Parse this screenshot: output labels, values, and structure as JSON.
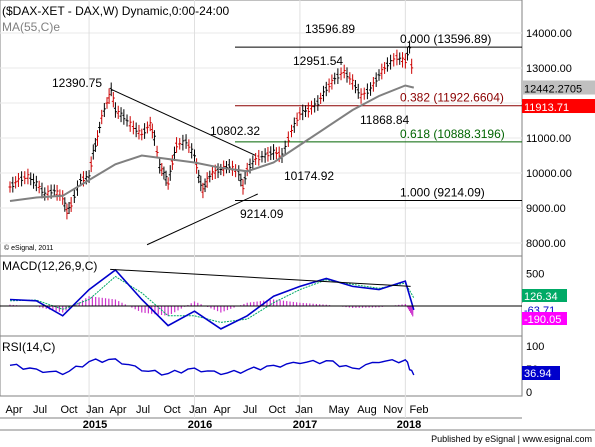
{
  "header": {
    "title": "($DAX-XET - DAX,W) Dynamic,0:00-24:00",
    "ma_label": "MA(55,C)e",
    "copyright": "© eSignal, 2011"
  },
  "footer": {
    "published": "Published by eSignal | www.esignal.com"
  },
  "chart_data": [
    {
      "id": "price",
      "type": "line",
      "series": [
        {
          "name": "",
          "role": "weekly bars",
          "x": [
            2014.25,
            2014.33,
            2014.42,
            2014.5,
            2014.58,
            2014.67,
            2014.75,
            2014.79,
            2014.83,
            2014.92,
            2015.0,
            2015.04,
            2015.08,
            2015.12,
            2015.17,
            2015.21,
            2015.25,
            2015.33,
            2015.42,
            2015.5,
            2015.58,
            2015.62,
            2015.67,
            2015.71,
            2015.75,
            2015.79,
            2015.83,
            2015.92,
            2016.0,
            2016.04,
            2016.08,
            2016.12,
            2016.17,
            2016.25,
            2016.33,
            2016.42,
            2016.46,
            2016.5,
            2016.58,
            2016.67,
            2016.75,
            2016.83,
            2016.92,
            2017.0,
            2017.08,
            2017.17,
            2017.25,
            2017.33,
            2017.42,
            2017.5,
            2017.58,
            2017.67,
            2017.75,
            2017.83,
            2017.92,
            2018.0,
            2018.04,
            2018.08
          ],
          "values": [
            9600,
            9800,
            9900,
            9700,
            9400,
            9500,
            9300,
            8900,
            9100,
            9800,
            9900,
            10600,
            11000,
            11600,
            12000,
            12390,
            11800,
            11600,
            11300,
            11100,
            11400,
            11000,
            10200,
            10000,
            9700,
            10300,
            10800,
            10900,
            10500,
            9900,
            9500,
            9800,
            10000,
            10100,
            10200,
            10000,
            9600,
            10100,
            10400,
            10500,
            10600,
            10500,
            11200,
            11700,
            11800,
            12000,
            12400,
            12700,
            12900,
            12600,
            12200,
            12400,
            12800,
            13100,
            13300,
            13200,
            13597,
            12500
          ]
        },
        {
          "name": "MA(55,C)e",
          "x": [
            2014.25,
            2014.5,
            2014.75,
            2015.0,
            2015.25,
            2015.5,
            2015.75,
            2016.0,
            2016.25,
            2016.5,
            2016.75,
            2017.0,
            2017.25,
            2017.5,
            2017.75,
            2018.0,
            2018.08
          ],
          "values": [
            9200,
            9300,
            9350,
            9800,
            10250,
            10500,
            10400,
            10300,
            10150,
            10050,
            10300,
            10800,
            11300,
            11800,
            12200,
            12500,
            12440
          ]
        }
      ],
      "annotations": [
        "12390.75",
        "13596.89",
        "12951.54",
        "10802.32",
        "11868.84",
        "10174.92",
        "9214.09"
      ],
      "fib_levels": [
        {
          "label": "0.000 (13596.89)",
          "value": 13596.89,
          "color": "#000000"
        },
        {
          "label": "0.382 (11922.6604)",
          "value": 11922.66,
          "color": "#8b0000"
        },
        {
          "label": "0.618 (10888.3196)",
          "value": 10888.32,
          "color": "#006400"
        },
        {
          "label": "1.000 (9214.09)",
          "value": 9214.09,
          "color": "#000000"
        }
      ],
      "price_tags": [
        {
          "label": "12442.2705",
          "value": 12442.27,
          "bg": "#c0c0c0"
        },
        {
          "label": "11913.71",
          "value": 11913.71,
          "bg": "#ff0000"
        }
      ],
      "y_ticks": [
        "14000.00",
        "13000.00",
        "12000.00",
        "11000.00",
        "10000.00",
        "9000.00",
        "8000.00"
      ],
      "ylim": [
        7600,
        14400
      ]
    },
    {
      "id": "macd",
      "type": "line",
      "title": "MACD(12,26,9,C)",
      "series": [
        {
          "name": "MACD",
          "x": [
            2014.25,
            2014.5,
            2014.75,
            2015.0,
            2015.25,
            2015.5,
            2015.75,
            2016.0,
            2016.25,
            2016.5,
            2016.75,
            2017.0,
            2017.25,
            2017.5,
            2017.75,
            2018.0,
            2018.08
          ],
          "values": [
            100,
            80,
            -150,
            250,
            550,
            100,
            -300,
            -80,
            -350,
            -150,
            150,
            300,
            420,
            300,
            250,
            380,
            -60
          ]
        },
        {
          "name": "Signal",
          "x": [
            2014.25,
            2014.5,
            2014.75,
            2015.0,
            2015.25,
            2015.5,
            2015.75,
            2016.0,
            2016.25,
            2016.5,
            2016.75,
            2017.0,
            2017.25,
            2017.5,
            2017.75,
            2018.0,
            2018.08
          ],
          "values": [
            80,
            90,
            -50,
            100,
            450,
            200,
            -150,
            -150,
            -250,
            -200,
            50,
            250,
            400,
            330,
            270,
            350,
            126
          ]
        }
      ],
      "y_ticks": [
        "500"
      ],
      "value_tags": [
        {
          "label": "126.34",
          "bg": "#00aa66"
        },
        {
          "label": "-63.71",
          "bg": "#ffffff",
          "fg": "#0000cc"
        },
        {
          "label": "-190.05",
          "bg": "#ff00ff"
        }
      ]
    },
    {
      "id": "rsi",
      "type": "line",
      "title": "RSI(14,C)",
      "series": [
        {
          "name": "RSI",
          "x": [
            2014.25,
            2014.5,
            2014.75,
            2015.0,
            2015.25,
            2015.5,
            2015.75,
            2016.0,
            2016.25,
            2016.5,
            2016.75,
            2017.0,
            2017.25,
            2017.5,
            2017.75,
            2018.0,
            2018.08
          ],
          "values": [
            58,
            50,
            38,
            66,
            72,
            46,
            40,
            52,
            38,
            48,
            58,
            62,
            68,
            52,
            64,
            70,
            37
          ]
        }
      ],
      "y_ticks": [
        "100",
        "50",
        "0"
      ],
      "value_tags": [
        {
          "label": "36.94",
          "bg": "#0000cc"
        }
      ]
    }
  ],
  "x_axis": {
    "months": [
      "Apr",
      "Jul",
      "Oct",
      "Jan",
      "Apr",
      "Jul",
      "Oct",
      "Jan",
      "Apr",
      "Jul",
      "Oct",
      "Jan",
      "May",
      "Aug",
      "Nov",
      "Feb"
    ],
    "years": [
      "2015",
      "2016",
      "2017",
      "2018"
    ]
  }
}
